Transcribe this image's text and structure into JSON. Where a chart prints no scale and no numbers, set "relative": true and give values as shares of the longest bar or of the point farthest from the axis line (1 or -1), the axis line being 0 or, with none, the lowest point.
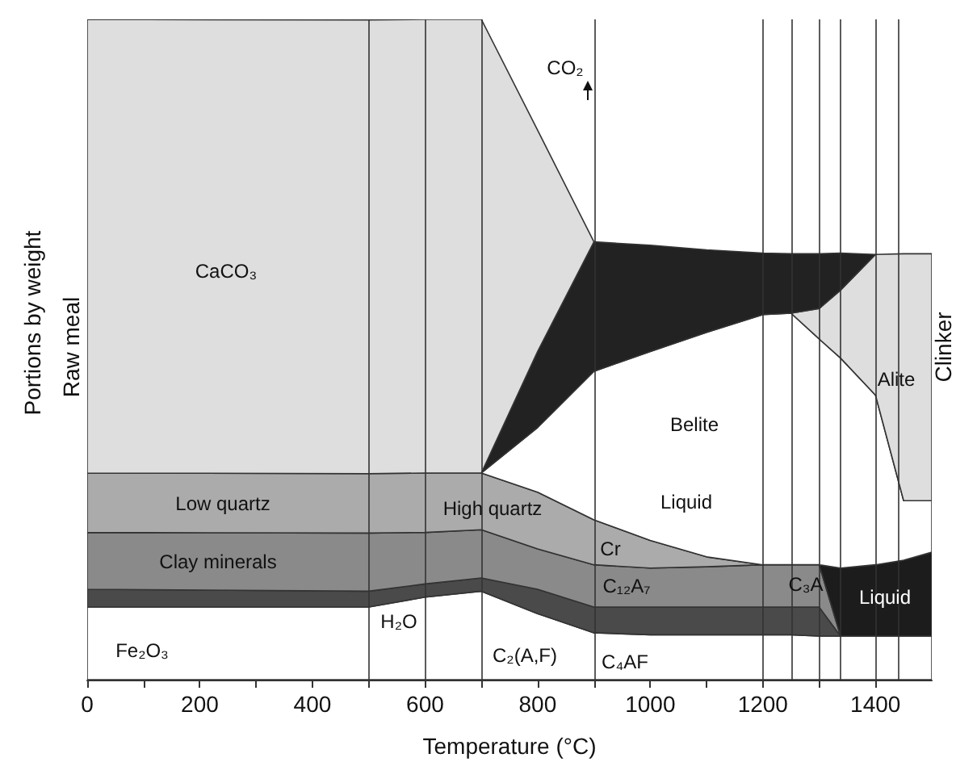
{
  "chart_data": {
    "type": "area",
    "stacked": true,
    "relative": true,
    "tick_labels": "x",
    "xlabel": "Temperature (°C)",
    "ylabel": "Portions by weight",
    "x": [
      0,
      500,
      600,
      700,
      800,
      900,
      1000,
      1100,
      1200,
      1250,
      1300,
      1338,
      1400,
      1450,
      1500
    ],
    "xlim": [
      0,
      1500
    ],
    "xticks": [
      0,
      {
        "value": 100,
        "label": null
      },
      200,
      {
        "value": 300,
        "label": null
      },
      400,
      {
        "value": 500,
        "label": null
      },
      600,
      {
        "value": 700,
        "label": null
      },
      800,
      {
        "value": 900,
        "label": null
      },
      1000,
      {
        "value": 1100,
        "label": null
      },
      1200,
      {
        "value": 1300,
        "label": null
      },
      1400
    ],
    "series": [
      {
        "color": "#ffffff",
        "values": [
          0.11,
          0.11,
          0.125,
          0.134,
          0.1,
          0.071,
          0.068,
          0.068,
          0.068,
          0.068,
          0.066,
          0.066,
          0.066,
          0.066,
          0.066
        ]
      },
      {
        "color": "#4a4a4a",
        "values": [
          0.027,
          0.024,
          0.02,
          0.02,
          0.037,
          0.039,
          0.042,
          0.042,
          0.042,
          0.042,
          0.044,
          0,
          null,
          null,
          null
        ]
      },
      {
        "color": "#8a8a8a",
        "values": [
          0.086,
          0.088,
          0.078,
          0.073,
          0.061,
          0.064,
          0.059,
          0.061,
          0.064,
          0.064,
          0.064,
          0,
          null,
          null,
          null
        ]
      },
      {
        "color": "#ababab",
        "values": [
          0.09,
          0.09,
          0.09,
          0.086,
          0.086,
          0.068,
          0.042,
          0.015,
          0,
          null,
          null,
          null,
          null,
          null,
          null
        ]
      },
      {
        "color": "#1c1c1c",
        "values": [
          null,
          null,
          null,
          null,
          null,
          null,
          null,
          null,
          null,
          null,
          0,
          0.103,
          0.108,
          0.115,
          0.127
        ]
      },
      {
        "color": "#ffffff",
        "values": [
          null,
          null,
          null,
          0,
          0.098,
          0.225,
          0.286,
          0.34,
          0.379,
          0.381,
          0.342,
          0.318,
          0.257,
          0.09,
          0.078
        ]
      },
      {
        "color": "#dedede",
        "values": [
          null,
          null,
          null,
          null,
          null,
          null,
          null,
          null,
          null,
          0,
          0.046,
          0.103,
          0.213,
          0.374,
          0.374
        ]
      },
      {
        "color": "#222222",
        "values": [
          null,
          null,
          null,
          0,
          0.115,
          0.196,
          0.161,
          0.125,
          0.093,
          0.09,
          0.083,
          0.056,
          0,
          null,
          null
        ]
      },
      {
        "color": "#dedede",
        "values": [
          0.687,
          0.687,
          0.687,
          0.687,
          0.335,
          0,
          null,
          null,
          null,
          null,
          null,
          null,
          null,
          null,
          null
        ]
      }
    ],
    "ref_lines": [
      {
        "axis": "x",
        "value": 500
      },
      {
        "axis": "x",
        "value": 600
      },
      {
        "axis": "x",
        "value": 700
      },
      {
        "axis": "x",
        "value": 900
      },
      {
        "axis": "x",
        "value": 1200
      },
      {
        "axis": "x",
        "value": 1250
      },
      {
        "axis": "x",
        "value": 1300
      },
      {
        "axis": "x",
        "value": 1338
      },
      {
        "axis": "x",
        "value": 1400
      },
      {
        "axis": "x",
        "value": 1440
      }
    ],
    "annotations": [
      "CaCO₃",
      "CO₂",
      "Alite",
      "Belite",
      "Liquid",
      "Low quartz",
      "High quartz",
      "Clay minerals",
      "Cr",
      "C₁₂A₇",
      "C₃A",
      "Liquid",
      "Fe₂O₃",
      "H₂O",
      "C₂(A,F)",
      "C₄AF",
      "Raw meal",
      "Clinker"
    ]
  }
}
